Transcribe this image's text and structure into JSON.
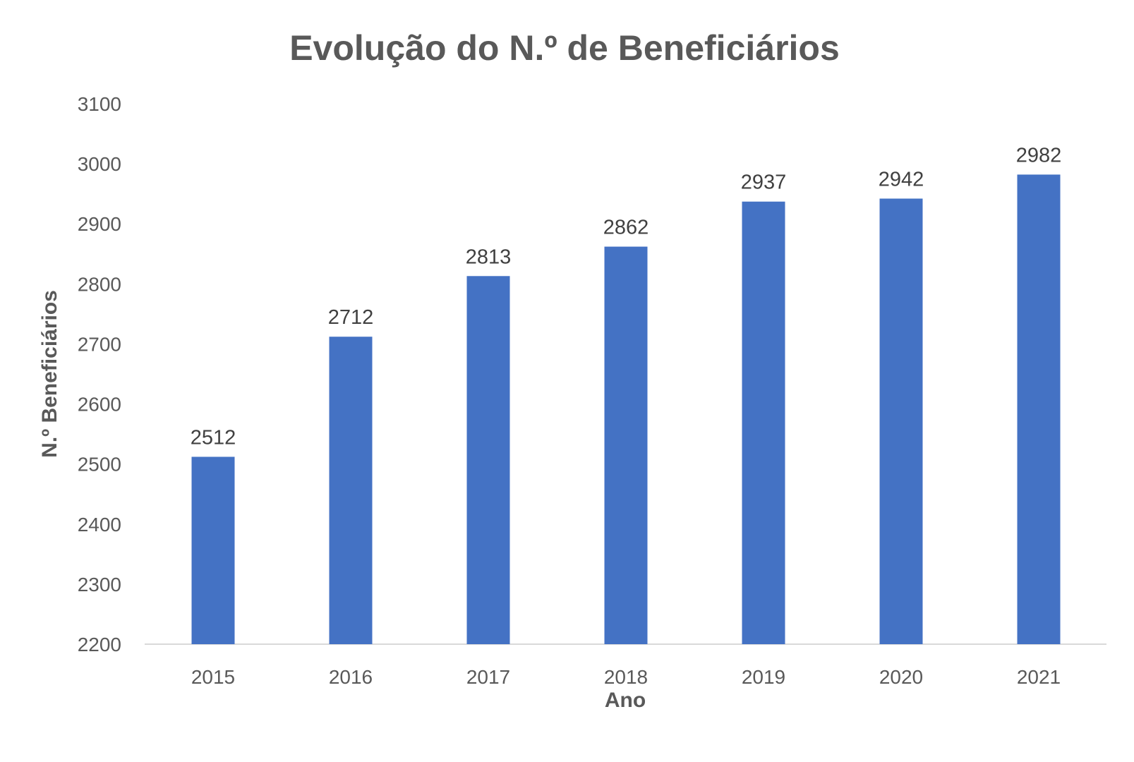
{
  "chart_data": {
    "type": "bar",
    "title": "Evolução do N.º de Beneficiários",
    "xlabel": "Ano",
    "ylabel": "N.º Beneficiários",
    "categories": [
      "2015",
      "2016",
      "2017",
      "2018",
      "2019",
      "2020",
      "2021"
    ],
    "values": [
      2512,
      2712,
      2813,
      2862,
      2937,
      2942,
      2982
    ],
    "ylim": [
      2200,
      3100
    ],
    "yticks": [
      "2200",
      "2300",
      "2400",
      "2500",
      "2600",
      "2700",
      "2800",
      "2900",
      "3000",
      "3100"
    ],
    "grid": false,
    "legend": "none",
    "bar_color": "#4472C4"
  }
}
